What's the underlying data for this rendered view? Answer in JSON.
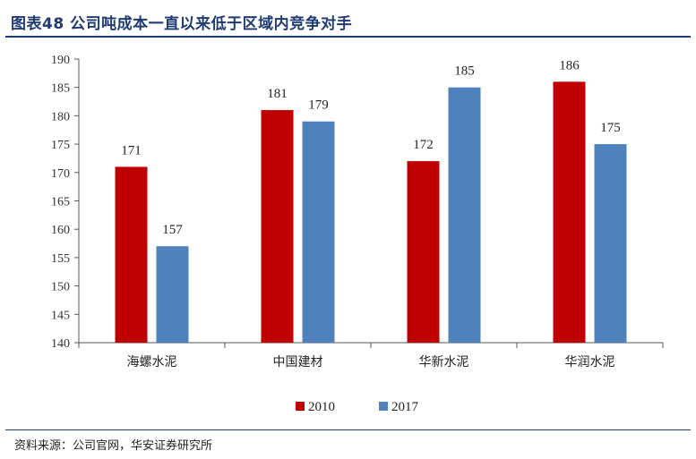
{
  "header": {
    "title": "图表48 公司吨成本一直以来低于区域内竞争对手"
  },
  "source": {
    "text": "资料来源：公司官网，华安证券研究所"
  },
  "colors": {
    "series_2010": "#c00000",
    "series_2017": "#4f81bd",
    "title": "#1f3b73"
  },
  "chart_data": {
    "type": "bar",
    "title": "",
    "xlabel": "",
    "ylabel": "",
    "categories": [
      "海螺水泥",
      "中国建材",
      "华新水泥",
      "华润水泥"
    ],
    "series": [
      {
        "name": "2010",
        "values": [
          171,
          181,
          172,
          186
        ]
      },
      {
        "name": "2017",
        "values": [
          157,
          179,
          185,
          175
        ]
      }
    ],
    "ylim": [
      140,
      190
    ],
    "yticks": [
      140,
      145,
      150,
      155,
      160,
      165,
      170,
      175,
      180,
      185,
      190
    ],
    "grid": false,
    "legend": "bottom-center"
  }
}
